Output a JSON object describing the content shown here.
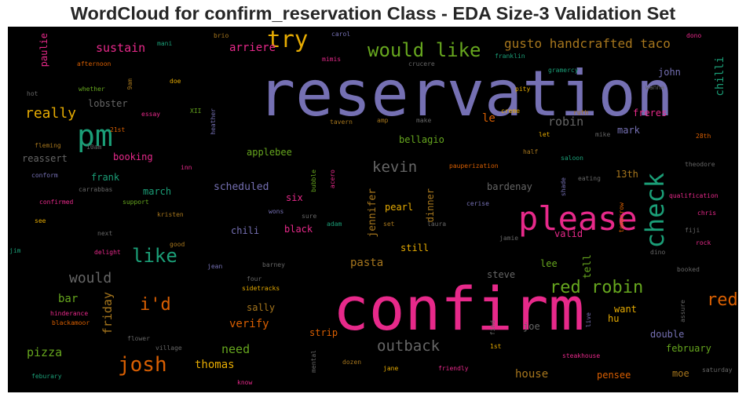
{
  "chart_data": {
    "type": "wordcloud",
    "title": "WordCloud for confirm_reservation Class - EDA Size-3 Validation Set",
    "background": "#000000",
    "palette": [
      "#7570b3",
      "#e7298a",
      "#1b9e77",
      "#d95f02",
      "#66a61e",
      "#e6ab02",
      "#a6761d",
      "#666666"
    ],
    "words": [
      {
        "text": "reservation",
        "weight": 100,
        "color": "#7570b3",
        "vertical": false
      },
      {
        "text": "confirm",
        "weight": 95,
        "color": "#e7298a",
        "vertical": false
      },
      {
        "text": "please",
        "weight": 52,
        "color": "#e7298a",
        "vertical": false
      },
      {
        "text": "pm",
        "weight": 48,
        "color": "#1b9e77",
        "vertical": false
      },
      {
        "text": "check",
        "weight": 40,
        "color": "#1b9e77",
        "vertical": true
      },
      {
        "text": "try",
        "weight": 36,
        "color": "#e6ab02",
        "vertical": false
      },
      {
        "text": "josh",
        "weight": 33,
        "color": "#d95f02",
        "vertical": false
      },
      {
        "text": "would like",
        "weight": 30,
        "color": "#66a61e",
        "vertical": false
      },
      {
        "text": "like",
        "weight": 30,
        "color": "#1b9e77",
        "vertical": false
      },
      {
        "text": "red robin",
        "weight": 28,
        "color": "#66a61e",
        "vertical": false
      },
      {
        "text": "red",
        "weight": 28,
        "color": "#d95f02",
        "vertical": false
      },
      {
        "text": "i'd",
        "weight": 27,
        "color": "#d95f02",
        "vertical": false
      },
      {
        "text": "kevin",
        "weight": 24,
        "color": "#666666",
        "vertical": false
      },
      {
        "text": "outback",
        "weight": 24,
        "color": "#666666",
        "vertical": false
      },
      {
        "text": "would",
        "weight": 23,
        "color": "#666666",
        "vertical": false
      },
      {
        "text": "really",
        "weight": 22,
        "color": "#e6ab02",
        "vertical": false
      },
      {
        "text": "gusto handcrafted taco",
        "weight": 20,
        "color": "#a6761d",
        "vertical": false
      },
      {
        "text": "robin",
        "weight": 19,
        "color": "#666666",
        "vertical": false
      },
      {
        "text": "sustain",
        "weight": 19,
        "color": "#e7298a",
        "vertical": false
      },
      {
        "text": "pizza",
        "weight": 19,
        "color": "#66a61e",
        "vertical": false
      },
      {
        "text": "friday",
        "weight": 19,
        "color": "#a6761d",
        "vertical": true
      },
      {
        "text": "need",
        "weight": 19,
        "color": "#66a61e",
        "vertical": false
      },
      {
        "text": "pasta",
        "weight": 18,
        "color": "#a6761d",
        "vertical": false
      },
      {
        "text": "bar",
        "weight": 18,
        "color": "#66a61e",
        "vertical": false
      },
      {
        "text": "verify",
        "weight": 18,
        "color": "#d95f02",
        "vertical": false
      },
      {
        "text": "thomas",
        "weight": 18,
        "color": "#e6ab02",
        "vertical": false
      },
      {
        "text": "house",
        "weight": 18,
        "color": "#a6761d",
        "vertical": false
      },
      {
        "text": "arriere",
        "weight": 17,
        "color": "#e7298a",
        "vertical": false
      },
      {
        "text": "chilli",
        "weight": 17,
        "color": "#1b9e77",
        "vertical": true
      },
      {
        "text": "le",
        "weight": 17,
        "color": "#d95f02",
        "vertical": false
      },
      {
        "text": "scheduled",
        "weight": 16,
        "color": "#7570b3",
        "vertical": false
      },
      {
        "text": "jennifer",
        "weight": 16,
        "color": "#a6761d",
        "vertical": true
      },
      {
        "text": "tell",
        "weight": 16,
        "color": "#66a61e",
        "vertical": true
      },
      {
        "text": "paulie",
        "weight": 15,
        "color": "#e7298a",
        "vertical": true
      },
      {
        "text": "lobster",
        "weight": 15,
        "color": "#666666",
        "vertical": false
      },
      {
        "text": "booking",
        "weight": 15,
        "color": "#e7298a",
        "vertical": false
      },
      {
        "text": "reassert",
        "weight": 15,
        "color": "#666666",
        "vertical": false
      },
      {
        "text": "frank",
        "weight": 15,
        "color": "#1b9e77",
        "vertical": false
      },
      {
        "text": "march",
        "weight": 15,
        "color": "#1b9e77",
        "vertical": false
      },
      {
        "text": "chili",
        "weight": 15,
        "color": "#7570b3",
        "vertical": false
      },
      {
        "text": "black",
        "weight": 15,
        "color": "#e7298a",
        "vertical": false
      },
      {
        "text": "six",
        "weight": 15,
        "color": "#e7298a",
        "vertical": false
      },
      {
        "text": "applebee",
        "weight": 15,
        "color": "#66a61e",
        "vertical": false
      },
      {
        "text": "bellagio",
        "weight": 15,
        "color": "#66a61e",
        "vertical": false
      },
      {
        "text": "bardenay",
        "weight": 15,
        "color": "#666666",
        "vertical": false
      },
      {
        "text": "freres",
        "weight": 15,
        "color": "#e7298a",
        "vertical": false
      },
      {
        "text": "mark",
        "weight": 15,
        "color": "#7570b3",
        "vertical": false
      },
      {
        "text": "13th",
        "weight": 15,
        "color": "#a6761d",
        "vertical": false
      },
      {
        "text": "john",
        "weight": 15,
        "color": "#7570b3",
        "vertical": false
      },
      {
        "text": "pearl",
        "weight": 15,
        "color": "#e6ab02",
        "vertical": false
      },
      {
        "text": "dinner",
        "weight": 15,
        "color": "#a6761d",
        "vertical": true
      },
      {
        "text": "still",
        "weight": 15,
        "color": "#e6ab02",
        "vertical": false
      },
      {
        "text": "valid",
        "weight": 15,
        "color": "#e7298a",
        "vertical": false
      },
      {
        "text": "lee",
        "weight": 15,
        "color": "#66a61e",
        "vertical": false
      },
      {
        "text": "steve",
        "weight": 15,
        "color": "#666666",
        "vertical": false
      },
      {
        "text": "sally",
        "weight": 15,
        "color": "#a6761d",
        "vertical": false
      },
      {
        "text": "strip",
        "weight": 15,
        "color": "#d95f02",
        "vertical": false
      },
      {
        "text": "joe",
        "weight": 15,
        "color": "#666666",
        "vertical": false
      },
      {
        "text": "want",
        "weight": 15,
        "color": "#e6ab02",
        "vertical": false
      },
      {
        "text": "hu",
        "weight": 15,
        "color": "#e6ab02",
        "vertical": false
      },
      {
        "text": "double",
        "weight": 15,
        "color": "#7570b3",
        "vertical": false
      },
      {
        "text": "february",
        "weight": 15,
        "color": "#66a61e",
        "vertical": false
      },
      {
        "text": "pensee",
        "weight": 15,
        "color": "#d95f02",
        "vertical": false
      },
      {
        "text": "moe",
        "weight": 15,
        "color": "#a6761d",
        "vertical": false
      },
      {
        "text": "mani",
        "weight": 8,
        "color": "#1b9e77",
        "vertical": false
      },
      {
        "text": "brio",
        "weight": 8,
        "color": "#a6761d",
        "vertical": false
      },
      {
        "text": "carol",
        "weight": 8,
        "color": "#7570b3",
        "vertical": false
      },
      {
        "text": "dono",
        "weight": 8,
        "color": "#e7298a",
        "vertical": false
      },
      {
        "text": "mimis",
        "weight": 8,
        "color": "#e7298a",
        "vertical": false
      },
      {
        "text": "franklin",
        "weight": 8,
        "color": "#1b9e77",
        "vertical": false
      },
      {
        "text": "gramercy",
        "weight": 8,
        "color": "#1b9e77",
        "vertical": false
      },
      {
        "text": "afternoon",
        "weight": 8,
        "color": "#d95f02",
        "vertical": false
      },
      {
        "text": "crucere",
        "weight": 8,
        "color": "#666666",
        "vertical": false
      },
      {
        "text": "wanna",
        "weight": 8,
        "color": "#666666",
        "vertical": false
      },
      {
        "text": "whether",
        "weight": 8,
        "color": "#66a61e",
        "vertical": false
      },
      {
        "text": "doe",
        "weight": 8,
        "color": "#e6ab02",
        "vertical": false
      },
      {
        "text": "pity",
        "weight": 8,
        "color": "#e6ab02",
        "vertical": false
      },
      {
        "text": "9am",
        "weight": 8,
        "color": "#a6761d",
        "vertical": true
      },
      {
        "text": "hot",
        "weight": 8,
        "color": "#666666",
        "vertical": false
      },
      {
        "text": "XII",
        "weight": 8,
        "color": "#66a61e",
        "vertical": false
      },
      {
        "text": "essay",
        "weight": 8,
        "color": "#e7298a",
        "vertical": false
      },
      {
        "text": "heather",
        "weight": 8,
        "color": "#7570b3",
        "vertical": true
      },
      {
        "text": "creme",
        "weight": 8,
        "color": "#e6ab02",
        "vertical": false
      },
      {
        "text": "ruth",
        "weight": 8,
        "color": "#a6761d",
        "vertical": false
      },
      {
        "text": "21st",
        "weight": 8,
        "color": "#d95f02",
        "vertical": false
      },
      {
        "text": "tavern",
        "weight": 8,
        "color": "#a6761d",
        "vertical": false
      },
      {
        "text": "amp",
        "weight": 8,
        "color": "#a6761d",
        "vertical": false
      },
      {
        "text": "make",
        "weight": 8,
        "color": "#666666",
        "vertical": false
      },
      {
        "text": "let",
        "weight": 8,
        "color": "#e6ab02",
        "vertical": false
      },
      {
        "text": "mike",
        "weight": 8,
        "color": "#666666",
        "vertical": false
      },
      {
        "text": "28th",
        "weight": 8,
        "color": "#d95f02",
        "vertical": false
      },
      {
        "text": "fleming",
        "weight": 8,
        "color": "#a6761d",
        "vertical": false
      },
      {
        "text": "10am",
        "weight": 8,
        "color": "#666666",
        "vertical": false
      },
      {
        "text": "half",
        "weight": 8,
        "color": "#a6761d",
        "vertical": false
      },
      {
        "text": "saloon",
        "weight": 8,
        "color": "#1b9e77",
        "vertical": false
      },
      {
        "text": "theodore",
        "weight": 8,
        "color": "#666666",
        "vertical": false
      },
      {
        "text": "inn",
        "weight": 8,
        "color": "#e7298a",
        "vertical": false
      },
      {
        "text": "bubble",
        "weight": 8,
        "color": "#66a61e",
        "vertical": true
      },
      {
        "text": "acero",
        "weight": 8,
        "color": "#e7298a",
        "vertical": true
      },
      {
        "text": "pauperization",
        "weight": 8,
        "color": "#d95f02",
        "vertical": false
      },
      {
        "text": "eating",
        "weight": 8,
        "color": "#666666",
        "vertical": false
      },
      {
        "text": "conform",
        "weight": 8,
        "color": "#7570b3",
        "vertical": false
      },
      {
        "text": "carrabbas",
        "weight": 8,
        "color": "#666666",
        "vertical": false
      },
      {
        "text": "shade",
        "weight": 8,
        "color": "#7570b3",
        "vertical": true
      },
      {
        "text": "qualification",
        "weight": 8,
        "color": "#e7298a",
        "vertical": false
      },
      {
        "text": "confirmed",
        "weight": 8,
        "color": "#e7298a",
        "vertical": false
      },
      {
        "text": "support",
        "weight": 8,
        "color": "#66a61e",
        "vertical": false
      },
      {
        "text": "wons",
        "weight": 8,
        "color": "#7570b3",
        "vertical": false
      },
      {
        "text": "cerise",
        "weight": 8,
        "color": "#7570b3",
        "vertical": false
      },
      {
        "text": "chris",
        "weight": 8,
        "color": "#e7298a",
        "vertical": false
      },
      {
        "text": "kristen",
        "weight": 8,
        "color": "#a6761d",
        "vertical": false
      },
      {
        "text": "sure",
        "weight": 8,
        "color": "#666666",
        "vertical": false
      },
      {
        "text": "tomorrow",
        "weight": 8,
        "color": "#d95f02",
        "vertical": true
      },
      {
        "text": "see",
        "weight": 8,
        "color": "#e6ab02",
        "vertical": false
      },
      {
        "text": "adam",
        "weight": 8,
        "color": "#1b9e77",
        "vertical": false
      },
      {
        "text": "set",
        "weight": 8,
        "color": "#a6761d",
        "vertical": false
      },
      {
        "text": "laura",
        "weight": 8,
        "color": "#666666",
        "vertical": false
      },
      {
        "text": "fiji",
        "weight": 8,
        "color": "#666666",
        "vertical": false
      },
      {
        "text": "next",
        "weight": 8,
        "color": "#666666",
        "vertical": false
      },
      {
        "text": "jamie",
        "weight": 8,
        "color": "#666666",
        "vertical": false
      },
      {
        "text": "jim",
        "weight": 8,
        "color": "#1b9e77",
        "vertical": false
      },
      {
        "text": "good",
        "weight": 8,
        "color": "#a6761d",
        "vertical": false
      },
      {
        "text": "rock",
        "weight": 8,
        "color": "#e7298a",
        "vertical": false
      },
      {
        "text": "delight",
        "weight": 8,
        "color": "#e7298a",
        "vertical": false
      },
      {
        "text": "dino",
        "weight": 8,
        "color": "#666666",
        "vertical": false
      },
      {
        "text": "jean",
        "weight": 8,
        "color": "#7570b3",
        "vertical": false
      },
      {
        "text": "barney",
        "weight": 8,
        "color": "#666666",
        "vertical": false
      },
      {
        "text": "booked",
        "weight": 8,
        "color": "#666666",
        "vertical": false
      },
      {
        "text": "four",
        "weight": 8,
        "color": "#666666",
        "vertical": false
      },
      {
        "text": "sidetracks",
        "weight": 8,
        "color": "#e6ab02",
        "vertical": false
      },
      {
        "text": "hinderance",
        "weight": 8,
        "color": "#e7298a",
        "vertical": false
      },
      {
        "text": "blackamoor",
        "weight": 8,
        "color": "#d95f02",
        "vertical": false
      },
      {
        "text": "find",
        "weight": 8,
        "color": "#666666",
        "vertical": true
      },
      {
        "text": "live",
        "weight": 8,
        "color": "#7570b3",
        "vertical": true
      },
      {
        "text": "assure",
        "weight": 8,
        "color": "#666666",
        "vertical": true
      },
      {
        "text": "flower",
        "weight": 8,
        "color": "#666666",
        "vertical": false
      },
      {
        "text": "village",
        "weight": 8,
        "color": "#666666",
        "vertical": false
      },
      {
        "text": "1st",
        "weight": 8,
        "color": "#e6ab02",
        "vertical": false
      },
      {
        "text": "steakhouse",
        "weight": 8,
        "color": "#e7298a",
        "vertical": false
      },
      {
        "text": "mental",
        "weight": 8,
        "color": "#666666",
        "vertical": true
      },
      {
        "text": "dozen",
        "weight": 8,
        "color": "#a6761d",
        "vertical": false
      },
      {
        "text": "jane",
        "weight": 8,
        "color": "#e6ab02",
        "vertical": false
      },
      {
        "text": "friendly",
        "weight": 8,
        "color": "#e7298a",
        "vertical": false
      },
      {
        "text": "saturday",
        "weight": 8,
        "color": "#666666",
        "vertical": false
      },
      {
        "text": "feburary",
        "weight": 8,
        "color": "#1b9e77",
        "vertical": false
      },
      {
        "text": "know",
        "weight": 8,
        "color": "#e7298a",
        "vertical": false
      }
    ]
  }
}
